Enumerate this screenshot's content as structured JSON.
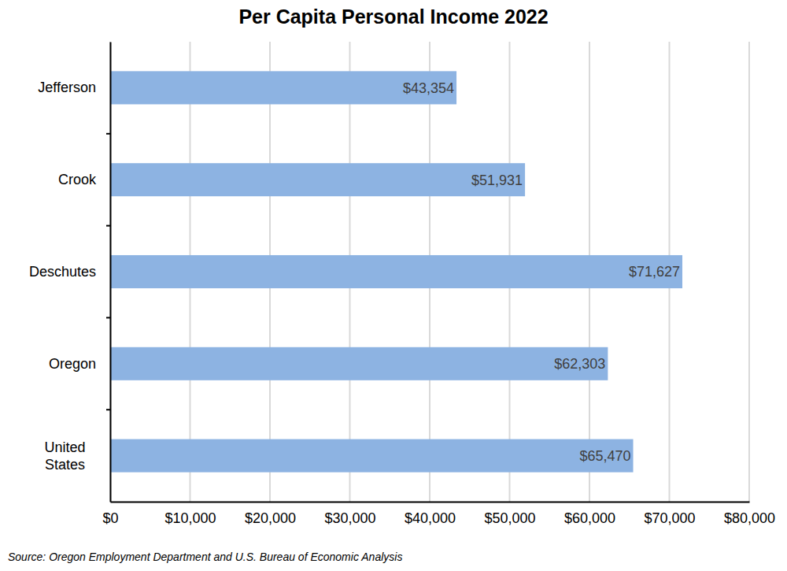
{
  "chart_data": {
    "type": "bar",
    "orientation": "horizontal",
    "title": "Per Capita Personal Income 2022",
    "source": "Source: Oregon Employment Department and U.S. Bureau of Economic Analysis",
    "categories": [
      "Jefferson",
      "Crook",
      "Deschutes",
      "Oregon",
      "United States"
    ],
    "values": [
      43354,
      51931,
      71627,
      62303,
      65470
    ],
    "value_labels": [
      "$43,354",
      "$51,931",
      "$71,627",
      "$62,303",
      "$65,470"
    ],
    "color": "#8db3e2",
    "xlim": [
      0,
      80000
    ],
    "xticks": [
      {
        "value": 0,
        "label": "$0"
      },
      {
        "value": 10000,
        "label": "$10,000"
      },
      {
        "value": 20000,
        "label": "$20,000"
      },
      {
        "value": 30000,
        "label": "$30,000"
      },
      {
        "value": 40000,
        "label": "$40,000"
      },
      {
        "value": 50000,
        "label": "$50,000"
      },
      {
        "value": 60000,
        "label": "$60,000"
      },
      {
        "value": 70000,
        "label": "$70,000"
      },
      {
        "value": 80000,
        "label": "$80,000"
      }
    ],
    "grid": true,
    "data_labels": true
  }
}
